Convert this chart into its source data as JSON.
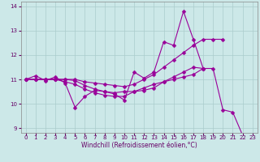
{
  "xlabel": "Windchill (Refroidissement éolien,°C)",
  "bg_color": "#cce8e8",
  "line_color": "#990099",
  "grid_color": "#aacccc",
  "xlim": [
    -0.5,
    23.5
  ],
  "ylim": [
    8.8,
    14.2
  ],
  "yticks": [
    9,
    10,
    11,
    12,
    13,
    14
  ],
  "xticks": [
    0,
    1,
    2,
    3,
    4,
    5,
    6,
    7,
    8,
    9,
    10,
    11,
    12,
    13,
    14,
    15,
    16,
    17,
    18,
    19,
    20,
    21,
    22,
    23
  ],
  "lines": [
    {
      "x": [
        0,
        1,
        2,
        3,
        4,
        5,
        6,
        7,
        8,
        9,
        10,
        11,
        12,
        13,
        14,
        15,
        16,
        17,
        18,
        19,
        20,
        21,
        22
      ],
      "y": [
        11.0,
        11.15,
        10.95,
        11.1,
        10.85,
        9.85,
        10.3,
        10.55,
        10.5,
        10.4,
        10.15,
        11.3,
        11.05,
        11.3,
        12.55,
        12.4,
        13.8,
        12.65,
        11.45,
        11.45,
        9.75,
        9.65,
        8.7
      ]
    },
    {
      "x": [
        0,
        1,
        2,
        3,
        4,
        5,
        6,
        7,
        8,
        9,
        10,
        11,
        12,
        13,
        14,
        15,
        16,
        17,
        18,
        19,
        20
      ],
      "y": [
        11.0,
        11.0,
        11.0,
        11.0,
        11.0,
        11.0,
        10.9,
        10.85,
        10.8,
        10.75,
        10.7,
        10.8,
        11.0,
        11.2,
        11.5,
        11.8,
        12.1,
        12.4,
        12.65,
        12.65,
        12.65
      ]
    },
    {
      "x": [
        0,
        1,
        2,
        3,
        4,
        5,
        6,
        7,
        8,
        9,
        10,
        11,
        12,
        13,
        14,
        15,
        16,
        17,
        18
      ],
      "y": [
        11.0,
        11.0,
        11.0,
        11.0,
        11.0,
        10.95,
        10.75,
        10.6,
        10.5,
        10.45,
        10.5,
        10.5,
        10.55,
        10.65,
        10.9,
        11.1,
        11.3,
        11.5,
        11.45
      ]
    },
    {
      "x": [
        0,
        1,
        2,
        3,
        4,
        5,
        6,
        7,
        8,
        9,
        10,
        11,
        12,
        13,
        14,
        15,
        16,
        17,
        18
      ],
      "y": [
        11.0,
        11.0,
        11.0,
        11.0,
        10.9,
        10.8,
        10.6,
        10.45,
        10.35,
        10.3,
        10.3,
        10.5,
        10.65,
        10.8,
        10.9,
        11.0,
        11.1,
        11.2,
        11.45
      ]
    }
  ],
  "marker": "D",
  "markersize": 2.5,
  "linewidth": 0.8,
  "axis_fontsize": 5.5,
  "tick_fontsize": 5.0
}
